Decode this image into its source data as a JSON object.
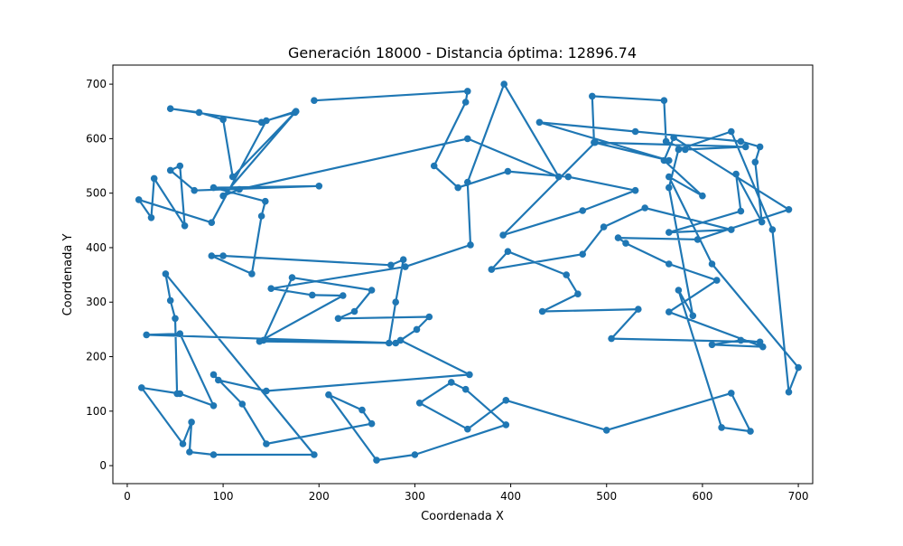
{
  "chart_data": {
    "type": "line",
    "title": "Generación 18000 - Distancia óptima: 12896.74",
    "xlabel": "Coordenada X",
    "ylabel": "Coordenada Y",
    "xlim": [
      -15,
      715
    ],
    "ylim": [
      -33,
      735
    ],
    "xticks": [
      0,
      100,
      200,
      300,
      400,
      500,
      600,
      700
    ],
    "yticks": [
      0,
      100,
      200,
      300,
      400,
      500,
      600,
      700
    ],
    "grid": false,
    "legend": "none",
    "series": [
      {
        "color": "#1f77b4",
        "marker": "circle",
        "points": [
          [
            195,
            670
          ],
          [
            355,
            687
          ],
          [
            353,
            667
          ],
          [
            320,
            550
          ],
          [
            345,
            510
          ],
          [
            397,
            540
          ],
          [
            460,
            530
          ],
          [
            530,
            505
          ],
          [
            475,
            468
          ],
          [
            392,
            423
          ],
          [
            488,
            593
          ],
          [
            645,
            585
          ],
          [
            582,
            580
          ],
          [
            562,
            595
          ],
          [
            560,
            670
          ],
          [
            485,
            678
          ],
          [
            487,
            593
          ],
          [
            565,
            560
          ],
          [
            430,
            630
          ],
          [
            530,
            613
          ],
          [
            640,
            595
          ],
          [
            660,
            585
          ],
          [
            655,
            557
          ],
          [
            662,
            447
          ],
          [
            635,
            535
          ],
          [
            640,
            467
          ],
          [
            565,
            428
          ],
          [
            630,
            433
          ],
          [
            540,
            473
          ],
          [
            497,
            438
          ],
          [
            475,
            388
          ],
          [
            380,
            360
          ],
          [
            397,
            393
          ],
          [
            458,
            350
          ],
          [
            470,
            315
          ],
          [
            433,
            283
          ],
          [
            533,
            287
          ],
          [
            505,
            233
          ],
          [
            660,
            227
          ],
          [
            640,
            230
          ],
          [
            610,
            222
          ],
          [
            663,
            218
          ],
          [
            565,
            282
          ],
          [
            615,
            340
          ],
          [
            565,
            370
          ],
          [
            520,
            408
          ],
          [
            512,
            418
          ],
          [
            595,
            415
          ],
          [
            690,
            470
          ],
          [
            570,
            602
          ],
          [
            560,
            560
          ],
          [
            600,
            495
          ],
          [
            565,
            530
          ],
          [
            610,
            370
          ],
          [
            700,
            180
          ],
          [
            690,
            135
          ],
          [
            673,
            433
          ],
          [
            630,
            613
          ],
          [
            575,
            580
          ],
          [
            565,
            510
          ],
          [
            590,
            275
          ],
          [
            575,
            322
          ],
          [
            620,
            70
          ],
          [
            650,
            63
          ],
          [
            630,
            133
          ],
          [
            500,
            65
          ],
          [
            395,
            120
          ],
          [
            355,
            67
          ],
          [
            305,
            115
          ],
          [
            338,
            153
          ],
          [
            353,
            140
          ],
          [
            395,
            75
          ],
          [
            300,
            20
          ],
          [
            260,
            10
          ],
          [
            210,
            130
          ],
          [
            245,
            102
          ],
          [
            255,
            77
          ],
          [
            145,
            40
          ],
          [
            120,
            113
          ],
          [
            90,
            167
          ],
          [
            95,
            157
          ],
          [
            145,
            137
          ],
          [
            357,
            167
          ],
          [
            285,
            230
          ],
          [
            302,
            250
          ],
          [
            315,
            273
          ],
          [
            220,
            270
          ],
          [
            237,
            283
          ],
          [
            255,
            322
          ],
          [
            172,
            345
          ],
          [
            142,
            230
          ],
          [
            273,
            225
          ],
          [
            280,
            300
          ],
          [
            288,
            378
          ],
          [
            275,
            368
          ],
          [
            100,
            385
          ],
          [
            88,
            385
          ],
          [
            130,
            352
          ],
          [
            140,
            458
          ],
          [
            144,
            485
          ],
          [
            90,
            510
          ],
          [
            200,
            513
          ],
          [
            70,
            505
          ],
          [
            45,
            542
          ],
          [
            55,
            550
          ],
          [
            60,
            440
          ],
          [
            28,
            527
          ],
          [
            25,
            455
          ],
          [
            12,
            488
          ],
          [
            88,
            446
          ],
          [
            145,
            633
          ],
          [
            175,
            648
          ],
          [
            110,
            530
          ],
          [
            100,
            635
          ],
          [
            75,
            648
          ],
          [
            45,
            655
          ],
          [
            140,
            630
          ],
          [
            176,
            650
          ],
          [
            100,
            495
          ],
          [
            117,
            507
          ],
          [
            355,
            600
          ],
          [
            450,
            530
          ],
          [
            393,
            700
          ],
          [
            355,
            520
          ],
          [
            358,
            405
          ],
          [
            290,
            365
          ],
          [
            150,
            325
          ],
          [
            193,
            313
          ],
          [
            225,
            312
          ],
          [
            138,
            228
          ],
          [
            280,
            225
          ],
          [
            20,
            240
          ],
          [
            55,
            242
          ],
          [
            90,
            110
          ],
          [
            55,
            132
          ],
          [
            15,
            143
          ],
          [
            58,
            40
          ],
          [
            67,
            80
          ],
          [
            65,
            25
          ],
          [
            90,
            20
          ],
          [
            195,
            20
          ],
          [
            40,
            352
          ],
          [
            45,
            303
          ],
          [
            50,
            270
          ],
          [
            52,
            132
          ]
        ]
      }
    ]
  }
}
